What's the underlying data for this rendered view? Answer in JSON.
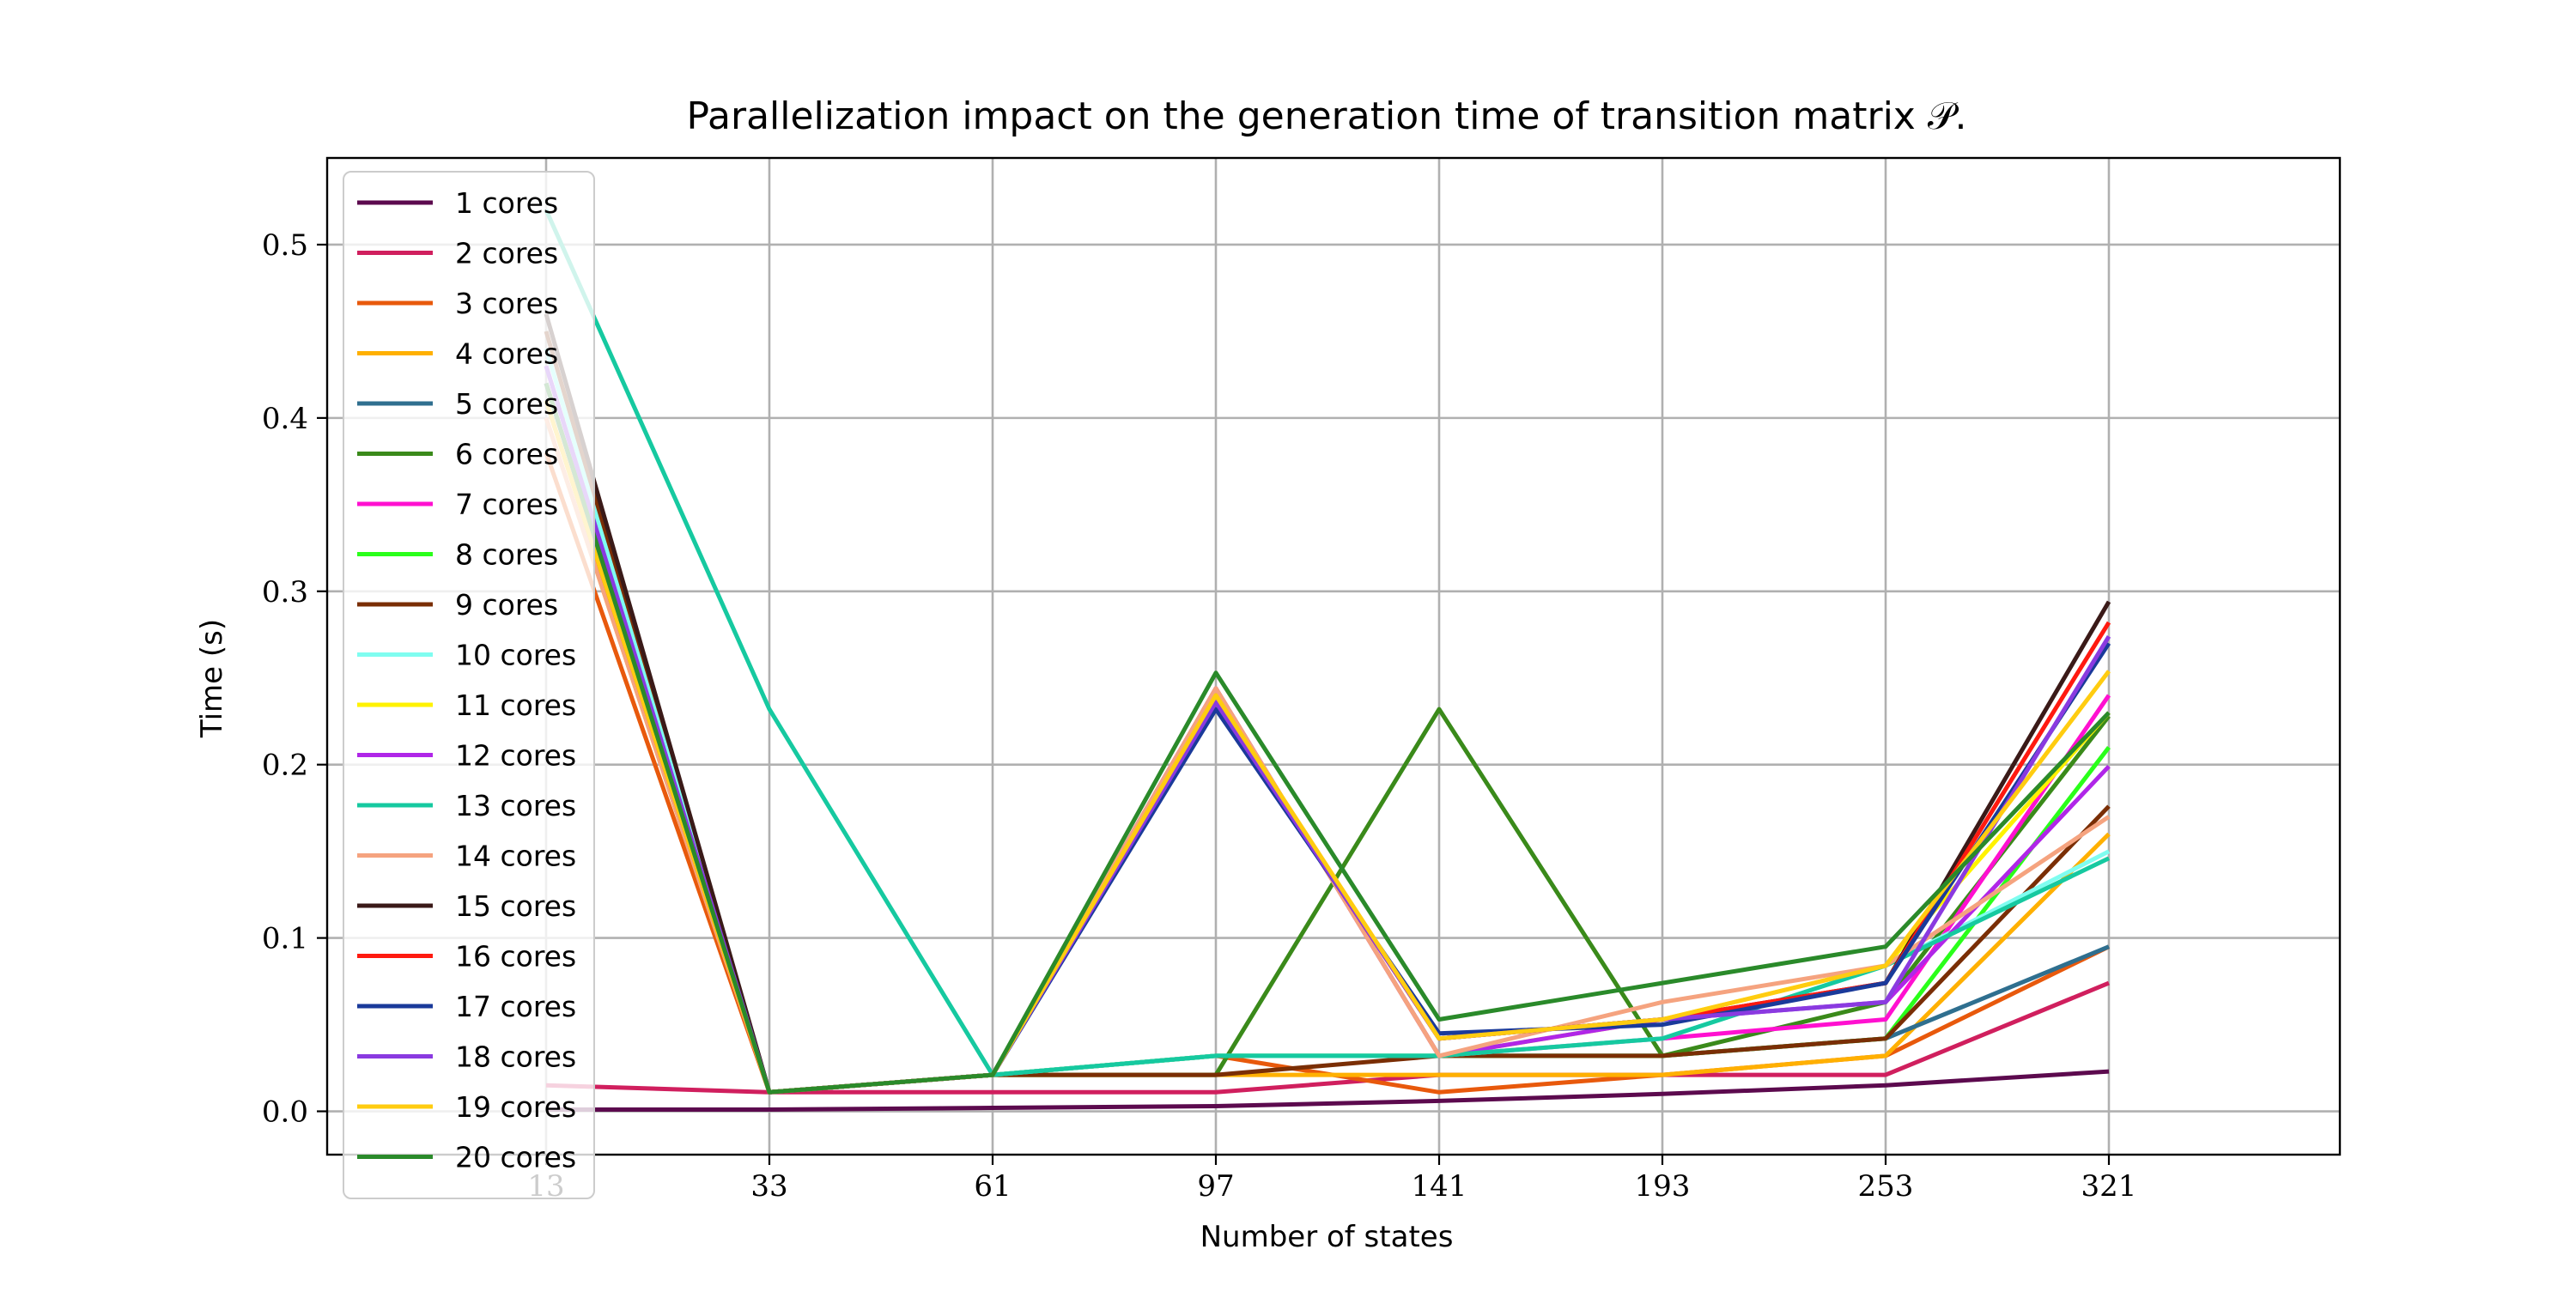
{
  "chart_data": {
    "type": "line",
    "title": "Parallelization impact on the generation time of transition matrix 𝒫.",
    "xlabel": "Number of states",
    "ylabel": "Time (s)",
    "categories": [
      "13",
      "33",
      "61",
      "97",
      "141",
      "193",
      "253",
      "321"
    ],
    "y_ticks": [
      "0.0",
      "0.1",
      "0.2",
      "0.3",
      "0.4",
      "0.5"
    ],
    "ylim": [
      -0.025,
      0.55
    ],
    "grid": true,
    "legend_position": "upper left",
    "series": [
      {
        "name": "1 cores",
        "color": "#5c0a4e",
        "values": [
          0.001,
          0.001,
          0.002,
          0.003,
          0.006,
          0.01,
          0.015,
          0.023
        ]
      },
      {
        "name": "2 cores",
        "color": "#d01f5e",
        "values": [
          0.015,
          0.011,
          0.011,
          0.011,
          0.021,
          0.021,
          0.021,
          0.074
        ]
      },
      {
        "name": "3 cores",
        "color": "#e8590c",
        "values": [
          0.38,
          0.011,
          0.021,
          0.032,
          0.011,
          0.021,
          0.032,
          0.095
        ]
      },
      {
        "name": "4 cores",
        "color": "#ffb000",
        "values": [
          0.4,
          0.011,
          0.021,
          0.021,
          0.021,
          0.021,
          0.032,
          0.16
        ]
      },
      {
        "name": "5 cores",
        "color": "#2f6f8f",
        "values": [
          0.42,
          0.011,
          0.021,
          0.032,
          0.032,
          0.032,
          0.042,
          0.095
        ]
      },
      {
        "name": "6 cores",
        "color": "#3a8a1a",
        "values": [
          0.42,
          0.011,
          0.021,
          0.021,
          0.232,
          0.032,
          0.063,
          0.228
        ]
      },
      {
        "name": "7 cores",
        "color": "#ff10d0",
        "values": [
          0.43,
          0.011,
          0.021,
          0.244,
          0.032,
          0.042,
          0.053,
          0.24
        ]
      },
      {
        "name": "8 cores",
        "color": "#2aff1a",
        "values": [
          0.42,
          0.011,
          0.021,
          0.032,
          0.032,
          0.032,
          0.042,
          0.21
        ]
      },
      {
        "name": "9 cores",
        "color": "#7a2e05",
        "values": [
          0.45,
          0.011,
          0.021,
          0.021,
          0.032,
          0.032,
          0.042,
          0.176
        ]
      },
      {
        "name": "10 cores",
        "color": "#7ffdf0",
        "values": [
          0.44,
          0.011,
          0.021,
          0.032,
          0.032,
          0.042,
          0.084,
          0.15
        ]
      },
      {
        "name": "11 cores",
        "color": "#fff200",
        "values": [
          0.41,
          0.011,
          0.021,
          0.244,
          0.032,
          0.053,
          0.084,
          0.23
        ]
      },
      {
        "name": "12 cores",
        "color": "#b026e8",
        "values": [
          0.42,
          0.011,
          0.021,
          0.244,
          0.032,
          0.053,
          0.063,
          0.199
        ]
      },
      {
        "name": "13 cores",
        "color": "#16c9a0",
        "values": [
          0.52,
          0.232,
          0.021,
          0.032,
          0.032,
          0.042,
          0.084,
          0.146
        ]
      },
      {
        "name": "14 cores",
        "color": "#f5a37f",
        "values": [
          0.4,
          0.011,
          0.021,
          0.244,
          0.032,
          0.063,
          0.084,
          0.17
        ]
      },
      {
        "name": "15 cores",
        "color": "#3a1a18",
        "values": [
          0.46,
          0.011,
          0.021,
          0.236,
          0.042,
          0.053,
          0.074,
          0.294
        ]
      },
      {
        "name": "16 cores",
        "color": "#ff1a10",
        "values": [
          0.41,
          0.011,
          0.021,
          0.236,
          0.042,
          0.053,
          0.074,
          0.282
        ]
      },
      {
        "name": "17 cores",
        "color": "#1a3a9a",
        "values": [
          0.42,
          0.011,
          0.021,
          0.232,
          0.045,
          0.05,
          0.074,
          0.27
        ]
      },
      {
        "name": "18 cores",
        "color": "#8a3ae0",
        "values": [
          0.43,
          0.011,
          0.021,
          0.236,
          0.042,
          0.053,
          0.063,
          0.274
        ]
      },
      {
        "name": "19 cores",
        "color": "#ffcc10",
        "values": [
          0.41,
          0.011,
          0.021,
          0.24,
          0.042,
          0.053,
          0.084,
          0.254
        ]
      },
      {
        "name": "20 cores",
        "color": "#2a8a2a",
        "values": [
          0.42,
          0.011,
          0.021,
          0.253,
          0.053,
          0.074,
          0.095,
          0.23
        ]
      }
    ]
  }
}
